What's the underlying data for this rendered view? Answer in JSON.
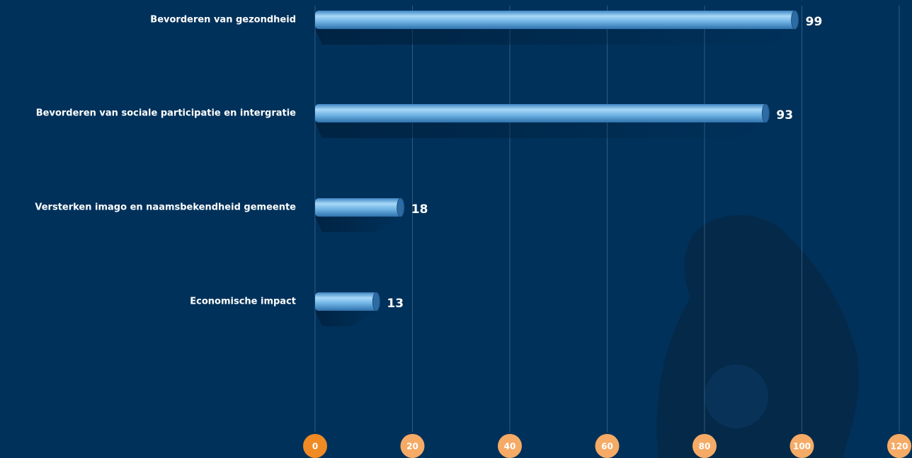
{
  "chart_data": {
    "type": "hbar",
    "categories": [
      "Bevorderen van gezondheid",
      "Bevorderen van sociale participatie en intergratie",
      "Versterken imago en naamsbekendheid gemeente",
      "Economische impact"
    ],
    "values": [
      99,
      93,
      18,
      13
    ],
    "color": "#6fb3e4",
    "xlim": [
      0,
      120
    ],
    "xticks": [
      0,
      20,
      40,
      60,
      80,
      100,
      120
    ],
    "grid": true
  }
}
